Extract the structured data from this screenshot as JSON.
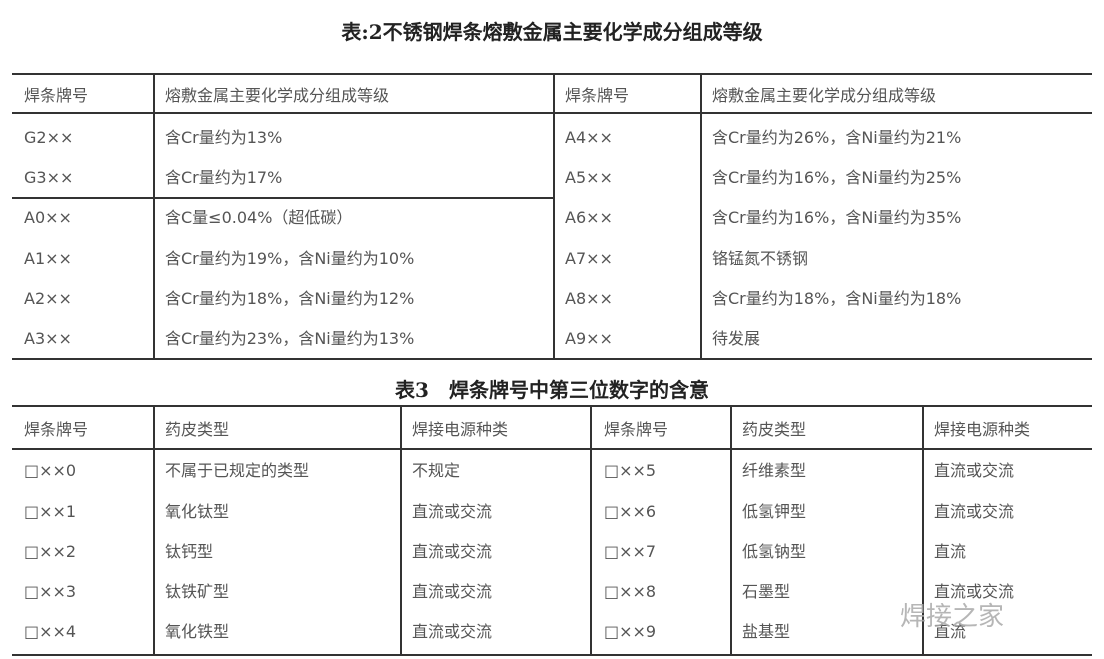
{
  "table2": {
    "title": "表:2不锈钢焊条熔敷金属主要化学成分组成等级",
    "headers": [
      "焊条牌号",
      "熔敷金属主要化学成分组成等级",
      "焊条牌号",
      "熔敷金属主要化学成分组成等级"
    ],
    "left": [
      [
        "G2××",
        "含Cr量约为13%"
      ],
      [
        "G3××",
        "含Cr量约为17%"
      ],
      [
        "A0××",
        "含C量≤0.04%（超低碳）"
      ],
      [
        "A1××",
        "含Cr量约为19%，含Ni量约为10%"
      ],
      [
        "A2××",
        "含Cr量约为18%，含Ni量约为12%"
      ],
      [
        "A3××",
        "含Cr量约为23%，含Ni量约为13%"
      ]
    ],
    "right": [
      [
        "A4××",
        "含Cr量约为26%，含Ni量约为21%"
      ],
      [
        "A5××",
        "含Cr量约为16%，含Ni量约为25%"
      ],
      [
        "A6××",
        "含Cr量约为16%，含Ni量约为35%"
      ],
      [
        "A7××",
        "铬锰氮不锈钢"
      ],
      [
        "A8××",
        "含Cr量约为18%，含Ni量约为18%"
      ],
      [
        "A9××",
        "待发展"
      ]
    ]
  },
  "table3": {
    "title": "表3　焊条牌号中第三位数字的含意",
    "headers": [
      "焊条牌号",
      "药皮类型",
      "焊接电源种类",
      "焊条牌号",
      "药皮类型",
      "焊接电源种类"
    ],
    "rows": [
      [
        "□××0",
        "不属于已规定的类型",
        "不规定",
        "□××5",
        "纤维素型",
        "直流或交流"
      ],
      [
        "□××1",
        "氧化钛型",
        "直流或交流",
        "□××6",
        "低氢钾型",
        "直流或交流"
      ],
      [
        "□××2",
        "钛钙型",
        "直流或交流",
        "□××7",
        "低氢钠型",
        "直流"
      ],
      [
        "□××3",
        "钛铁矿型",
        "直流或交流",
        "□××8",
        "石墨型",
        "直流或交流"
      ],
      [
        "□××4",
        "氧化铁型",
        "直流或交流",
        "□××9",
        "盐基型",
        "直流"
      ]
    ]
  },
  "watermark": "焊接之家"
}
